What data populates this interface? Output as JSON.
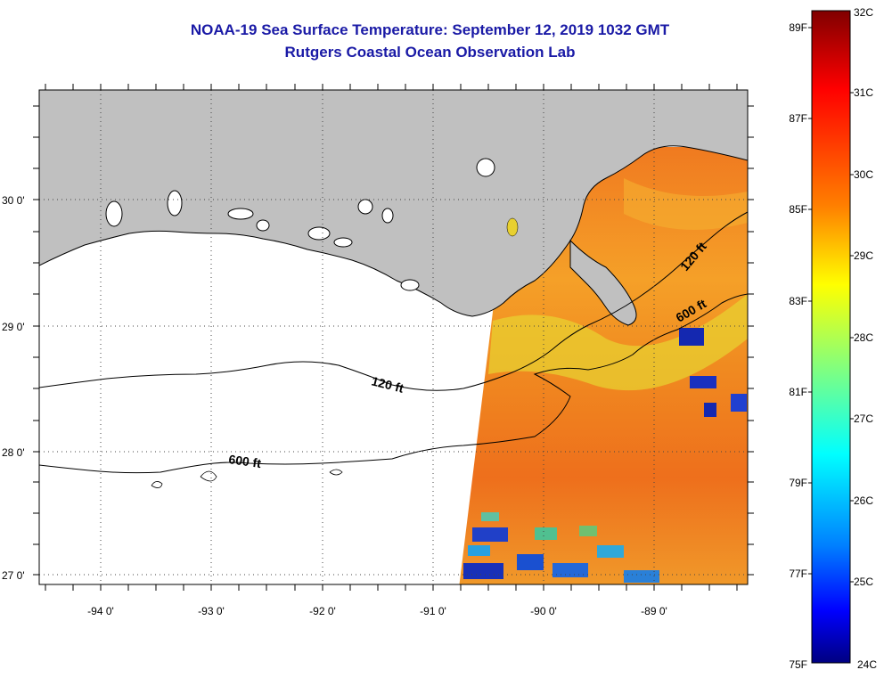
{
  "title": "NOAA-19 Sea Surface Temperature:  September 12, 2019 1032 GMT",
  "subtitle": "Rutgers Coastal Ocean Observation Lab",
  "map": {
    "lon_range": [
      -94.5,
      -88.25
    ],
    "lat_range": [
      26.95,
      30.85
    ],
    "lon_ticks": [
      "-94 0'",
      "-93 0'",
      "-92 0'",
      "-91 0'",
      "-90 0'",
      "-89 0'"
    ],
    "lat_ticks": [
      "30 0'",
      "29 0'",
      "28 0'",
      "27 0'"
    ],
    "contour_labels": [
      "120 ft",
      "600 ft",
      "120 ft",
      "600 ft"
    ],
    "colors": {
      "land": "#c0c0c0",
      "no_data": "#ffffff",
      "sst_dominant": "#f08020"
    }
  },
  "colorbar": {
    "celsius_labels": [
      "32C",
      "31C",
      "30C",
      "29C",
      "28C",
      "27C",
      "26C",
      "25C",
      "24C"
    ],
    "fahrenheit_labels": [
      "89F",
      "87F",
      "85F",
      "83F",
      "81F",
      "79F",
      "77F",
      "75F"
    ],
    "range_c": [
      24,
      32
    ]
  }
}
